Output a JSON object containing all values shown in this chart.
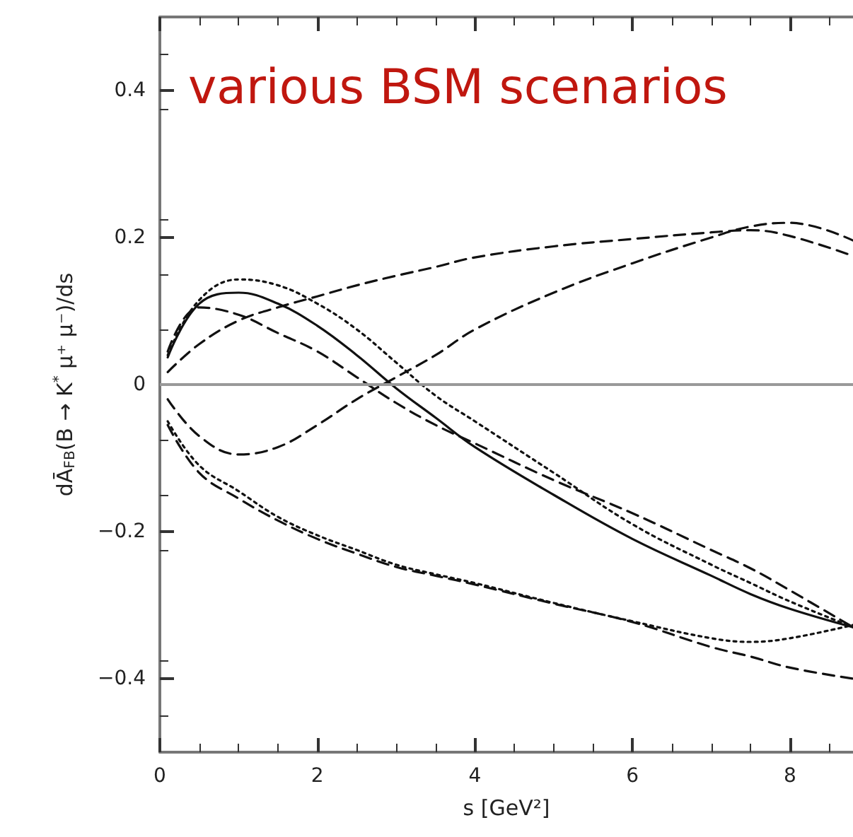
{
  "chart_data": {
    "type": "line",
    "title": "various BSM scenarios",
    "xlabel": "s [GeV²]",
    "ylabel": "dĀ$_{FB}$(B → K$^{*}$ μ⁺ μ⁻)/ds",
    "x": [
      0.1,
      0.5,
      1,
      1.5,
      2,
      2.5,
      3,
      3.5,
      4,
      5,
      6,
      7,
      7.5,
      8,
      8.8
    ],
    "series": [
      {
        "color": "#111111",
        "line_style": "solid",
        "values": [
          0.037,
          0.11,
          0.125,
          0.11,
          0.08,
          0.04,
          -0.005,
          -0.045,
          -0.085,
          -0.15,
          -0.21,
          -0.26,
          -0.285,
          -0.305,
          -0.33
        ]
      },
      {
        "color": "#111111",
        "line_style": "dotted",
        "values": [
          0.04,
          0.115,
          0.143,
          0.135,
          0.11,
          0.075,
          0.03,
          -0.015,
          -0.05,
          -0.12,
          -0.19,
          -0.245,
          -0.27,
          -0.295,
          -0.33
        ]
      },
      {
        "color": "#111111",
        "line_style": "dashed",
        "values": [
          0.045,
          0.105,
          0.095,
          0.07,
          0.045,
          0.01,
          -0.025,
          -0.055,
          -0.08,
          -0.13,
          -0.175,
          -0.225,
          -0.25,
          -0.28,
          -0.33
        ]
      },
      {
        "color": "#111111",
        "line_style": "dashed",
        "values": [
          0.017,
          0.055,
          0.087,
          0.105,
          0.12,
          0.135,
          0.148,
          0.16,
          0.173,
          0.188,
          0.198,
          0.207,
          0.21,
          0.202,
          0.175
        ]
      },
      {
        "color": "#111111",
        "line_style": "dashed",
        "values": [
          -0.02,
          -0.07,
          -0.095,
          -0.085,
          -0.055,
          -0.02,
          0.01,
          0.04,
          0.075,
          0.125,
          0.165,
          0.2,
          0.215,
          0.22,
          0.196
        ]
      },
      {
        "color": "#111111",
        "line_style": "dotted",
        "values": [
          -0.05,
          -0.11,
          -0.145,
          -0.18,
          -0.205,
          -0.225,
          -0.245,
          -0.258,
          -0.27,
          -0.297,
          -0.322,
          -0.345,
          -0.35,
          -0.345,
          -0.327
        ]
      },
      {
        "color": "#111111",
        "line_style": "dashed",
        "values": [
          -0.055,
          -0.12,
          -0.155,
          -0.185,
          -0.21,
          -0.23,
          -0.248,
          -0.26,
          -0.272,
          -0.298,
          -0.323,
          -0.357,
          -0.37,
          -0.385,
          -0.4
        ]
      }
    ],
    "xlim": [
      0,
      8.8
    ],
    "xticks": [
      0,
      2,
      4,
      6,
      8
    ],
    "ylim": [
      -0.5,
      0.5
    ],
    "yticks": [
      {
        "value": -0.4,
        "label": "−0.4"
      },
      {
        "value": -0.2,
        "label": "−0.2"
      },
      0,
      0.2,
      0.4
    ],
    "ref_lines": [
      {
        "axis": "y",
        "value": 0,
        "color": "#999999"
      }
    ],
    "grid": false,
    "marker": "none"
  }
}
